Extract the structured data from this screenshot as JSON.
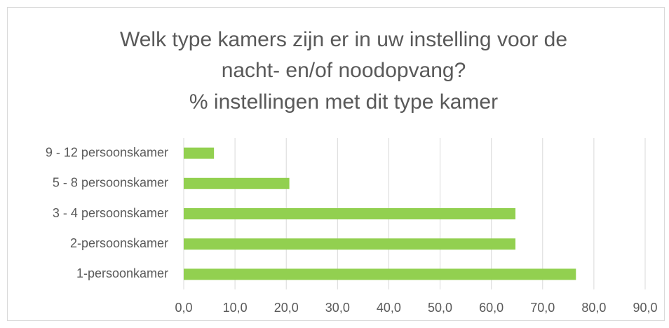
{
  "chart_data": {
    "type": "hbar",
    "title": [
      "Welk type kamers zijn er in uw instelling voor de",
      "nacht- en/of noodopvang?",
      "% instellingen met dit type kamer"
    ],
    "categories": [
      "1-persoonkamer",
      "2-persoonskamer",
      "3 - 4 persoonskamer",
      "5 - 8 persoonskamer",
      "9 - 12 persoonskamer"
    ],
    "values": [
      76.5,
      64.7,
      64.7,
      20.6,
      5.9
    ],
    "color": "#92d050",
    "xlim": [
      0,
      90
    ],
    "xticks": [
      {
        "value": 0,
        "label": "0,0"
      },
      {
        "value": 10,
        "label": "10,0"
      },
      {
        "value": 20,
        "label": "20,0"
      },
      {
        "value": 30,
        "label": "30,0"
      },
      {
        "value": 40,
        "label": "40,0"
      },
      {
        "value": 50,
        "label": "50,0"
      },
      {
        "value": 60,
        "label": "60,0"
      },
      {
        "value": 70,
        "label": "70,0"
      },
      {
        "value": 80,
        "label": "80,0"
      },
      {
        "value": 90,
        "label": "90,0"
      }
    ],
    "grid": true
  }
}
